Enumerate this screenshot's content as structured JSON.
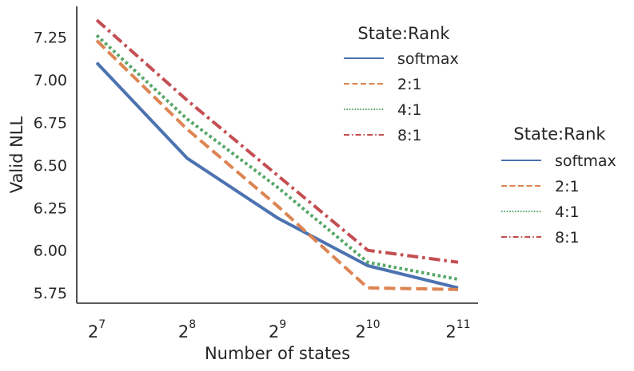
{
  "chart_data": {
    "type": "line",
    "title": "",
    "xlabel": "Number of states",
    "ylabel": "Valid NLL",
    "x": [
      7,
      8,
      9,
      10,
      11
    ],
    "x_tick_labels": [
      {
        "base": "2",
        "exp": "7"
      },
      {
        "base": "2",
        "exp": "8"
      },
      {
        "base": "2",
        "exp": "9"
      },
      {
        "base": "2",
        "exp": "10"
      },
      {
        "base": "2",
        "exp": "11"
      }
    ],
    "x_scale": "log2",
    "ylim": [
      5.69,
      7.43
    ],
    "y_ticks": [
      "5.75",
      "6.00",
      "6.25",
      "6.50",
      "6.75",
      "7.00",
      "7.25"
    ],
    "grid": false,
    "series": [
      {
        "name": "softmax",
        "color": "#4c72b0",
        "dash": "solid",
        "values": [
          7.1,
          6.54,
          6.19,
          5.91,
          5.78
        ]
      },
      {
        "name": "2:1",
        "color": "#dd8452",
        "dash": "dashed",
        "values": [
          7.23,
          6.71,
          6.26,
          5.78,
          5.77
        ]
      },
      {
        "name": "4:1",
        "color": "#55a868",
        "dash": "dotted",
        "values": [
          7.26,
          6.77,
          6.37,
          5.93,
          5.83
        ]
      },
      {
        "name": "8:1",
        "color": "#c44e52",
        "dash": "dashdot",
        "values": [
          7.35,
          6.88,
          6.44,
          6.0,
          5.93
        ]
      }
    ],
    "legends": [
      {
        "title": "State:Rank",
        "placement": "upper-right inside"
      },
      {
        "title": "State:Rank",
        "placement": "right outside"
      }
    ]
  }
}
